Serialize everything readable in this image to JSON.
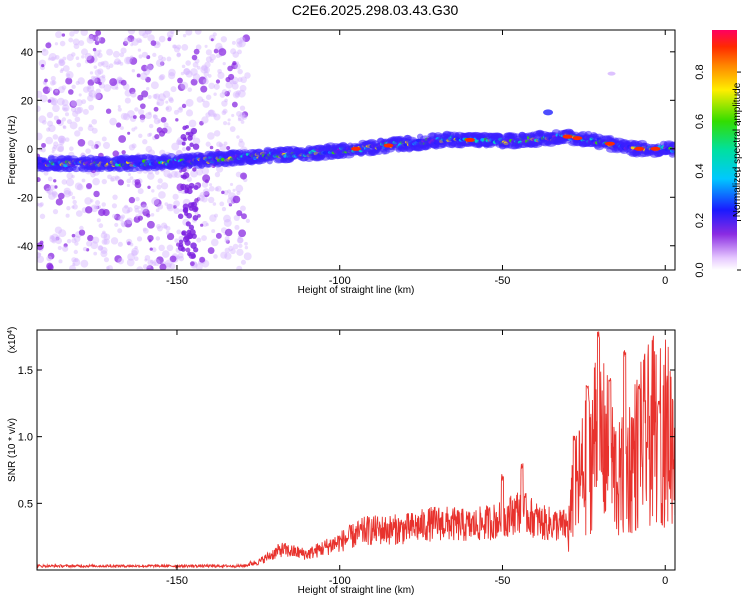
{
  "title": "C2E6.2025.298.03.43.G30",
  "chart_data": [
    {
      "type": "heatmap",
      "xlabel": "Height of straight line (km)",
      "ylabel": "Frequency (Hz)",
      "xlim": [
        -193,
        3
      ],
      "ylim": [
        -50,
        49
      ],
      "xticks": [
        -150,
        -100,
        -50,
        0
      ],
      "yticks": [
        -40,
        -20,
        0,
        20,
        40
      ],
      "colorbar": {
        "label": "Normalized spectral amplitude",
        "range": [
          0.0,
          0.97
        ],
        "ticks": [
          0.0,
          0.2,
          0.4,
          0.6,
          0.8
        ]
      },
      "ridge": [
        {
          "x": -193,
          "y": -6
        },
        {
          "x": -165,
          "y": -6
        },
        {
          "x": -145,
          "y": -5
        },
        {
          "x": -125,
          "y": -3
        },
        {
          "x": -110,
          "y": -2
        },
        {
          "x": -95,
          "y": 0
        },
        {
          "x": -80,
          "y": 2
        },
        {
          "x": -65,
          "y": 4
        },
        {
          "x": -50,
          "y": 3
        },
        {
          "x": -40,
          "y": 4
        },
        {
          "x": -30,
          "y": 5
        },
        {
          "x": -20,
          "y": 3
        },
        {
          "x": -10,
          "y": 0
        },
        {
          "x": 0,
          "y": 0
        }
      ],
      "scatter_noise_region": [
        -193,
        -128
      ]
    },
    {
      "type": "line",
      "xlabel": "Height of straight line (km)",
      "ylabel": "SNR (10 * v/v)",
      "yunit": "(x10",
      "yunit_exp": "4",
      "yunit_close": ")",
      "xlim": [
        -193,
        3
      ],
      "ylim": [
        0,
        1.8
      ],
      "xticks": [
        -150,
        -100,
        -50,
        0
      ],
      "yticks": [
        0.5,
        1.0,
        1.5
      ],
      "color": "#e8322d",
      "envelope": [
        {
          "x": -193,
          "y": 0.03
        },
        {
          "x": -130,
          "y": 0.03
        },
        {
          "x": -125,
          "y": 0.05
        },
        {
          "x": -118,
          "y": 0.13
        },
        {
          "x": -110,
          "y": 0.1
        },
        {
          "x": -100,
          "y": 0.18
        },
        {
          "x": -92,
          "y": 0.25
        },
        {
          "x": -80,
          "y": 0.26
        },
        {
          "x": -70,
          "y": 0.3
        },
        {
          "x": -60,
          "y": 0.28
        },
        {
          "x": -50,
          "y": 0.32
        },
        {
          "x": -45,
          "y": 0.38
        },
        {
          "x": -38,
          "y": 0.3
        },
        {
          "x": -30,
          "y": 0.28
        },
        {
          "x": -28,
          "y": 0.6
        },
        {
          "x": -24,
          "y": 0.85
        },
        {
          "x": -21,
          "y": 1.1
        },
        {
          "x": -18,
          "y": 0.95
        },
        {
          "x": -14,
          "y": 0.7
        },
        {
          "x": -10,
          "y": 0.9
        },
        {
          "x": -6,
          "y": 1.05
        },
        {
          "x": -2,
          "y": 1.15
        },
        {
          "x": 3,
          "y": 1.05
        }
      ],
      "peaks": [
        {
          "x": -50,
          "y": 0.72
        },
        {
          "x": -44,
          "y": 0.8
        },
        {
          "x": -28,
          "y": 1.01
        },
        {
          "x": -24,
          "y": 1.4
        },
        {
          "x": -20.5,
          "y": 1.79
        },
        {
          "x": -17,
          "y": 1.45
        },
        {
          "x": -12.5,
          "y": 1.65
        },
        {
          "x": -8,
          "y": 1.4
        },
        {
          "x": -2,
          "y": 1.27
        }
      ]
    }
  ]
}
